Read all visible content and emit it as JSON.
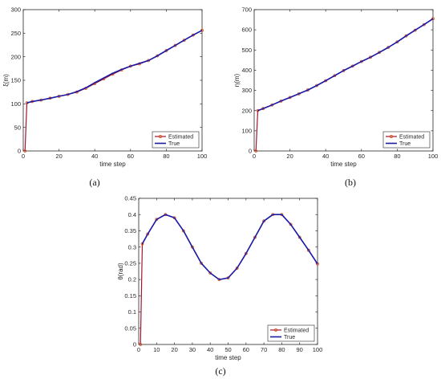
{
  "colors": {
    "estimated": "#a2142f",
    "estimated_marker": "#d95319",
    "true": "#1a1aa6",
    "axis": "#262626"
  },
  "chart_data": [
    {
      "type": "line",
      "panel": "(a)",
      "xlabel": "time step",
      "ylabel": "ξ(m)",
      "xlim": [
        0,
        100
      ],
      "ylim": [
        0,
        300
      ],
      "xticks": [
        0,
        20,
        40,
        60,
        80,
        100
      ],
      "yticks": [
        0,
        50,
        100,
        150,
        200,
        250,
        300
      ],
      "grid": false,
      "legend": "bottom-right",
      "series": [
        {
          "name": "Estimated",
          "key": "estimated",
          "marker": true,
          "x": [
            1,
            2,
            5,
            10,
            15,
            20,
            25,
            30,
            35,
            40,
            45,
            50,
            55,
            60,
            65,
            70,
            75,
            80,
            85,
            90,
            95,
            100
          ],
          "y": [
            0,
            102,
            105,
            108,
            112,
            116,
            120,
            125,
            133,
            143,
            153,
            163,
            172,
            180,
            185,
            192,
            202,
            213,
            224,
            235,
            246,
            256
          ]
        },
        {
          "name": "True",
          "key": "true",
          "marker": false,
          "x": [
            2,
            5,
            10,
            15,
            20,
            25,
            30,
            35,
            40,
            45,
            50,
            55,
            60,
            65,
            70,
            75,
            80,
            85,
            90,
            95,
            100
          ],
          "y": [
            102,
            105,
            108,
            112,
            116,
            120,
            126,
            134,
            145,
            155,
            165,
            173,
            180,
            186,
            192,
            202,
            213,
            224,
            235,
            246,
            256
          ]
        }
      ]
    },
    {
      "type": "line",
      "panel": "(b)",
      "xlabel": "time step",
      "ylabel": "η(m)",
      "xlim": [
        0,
        100
      ],
      "ylim": [
        0,
        700
      ],
      "xticks": [
        0,
        20,
        40,
        60,
        80,
        100
      ],
      "yticks": [
        0,
        100,
        200,
        300,
        400,
        500,
        600,
        700
      ],
      "grid": false,
      "legend": "bottom-right",
      "series": [
        {
          "name": "Estimated",
          "key": "estimated",
          "marker": true,
          "x": [
            1,
            2,
            5,
            10,
            15,
            20,
            25,
            30,
            35,
            40,
            45,
            50,
            55,
            60,
            65,
            70,
            75,
            80,
            85,
            90,
            95,
            100
          ],
          "y": [
            0,
            200,
            210,
            228,
            247,
            265,
            283,
            302,
            324,
            348,
            373,
            398,
            420,
            443,
            464,
            488,
            513,
            540,
            570,
            598,
            626,
            655
          ]
        },
        {
          "name": "True",
          "key": "true",
          "marker": false,
          "x": [
            2,
            5,
            10,
            15,
            20,
            25,
            30,
            35,
            40,
            45,
            50,
            55,
            60,
            65,
            70,
            75,
            80,
            85,
            90,
            95,
            100
          ],
          "y": [
            200,
            210,
            228,
            247,
            265,
            283,
            302,
            324,
            348,
            373,
            398,
            420,
            443,
            464,
            488,
            513,
            540,
            570,
            598,
            626,
            655
          ]
        }
      ]
    },
    {
      "type": "line",
      "panel": "(c)",
      "xlabel": "time step",
      "ylabel": "θ(rad)",
      "xlim": [
        0,
        100
      ],
      "ylim": [
        0,
        0.45
      ],
      "xticks": [
        0,
        10,
        20,
        30,
        40,
        50,
        60,
        70,
        80,
        90,
        100
      ],
      "yticks": [
        0,
        0.05,
        0.1,
        0.15,
        0.2,
        0.25,
        0.3,
        0.35,
        0.4,
        0.45
      ],
      "grid": false,
      "legend": "bottom-right",
      "series": [
        {
          "name": "Estimated",
          "key": "estimated",
          "marker": true,
          "x": [
            1,
            2,
            5,
            10,
            15,
            20,
            25,
            30,
            35,
            40,
            45,
            50,
            55,
            60,
            65,
            70,
            75,
            80,
            85,
            90,
            95,
            100
          ],
          "y": [
            0,
            0.31,
            0.34,
            0.385,
            0.4,
            0.39,
            0.35,
            0.3,
            0.25,
            0.22,
            0.2,
            0.205,
            0.235,
            0.28,
            0.33,
            0.38,
            0.4,
            0.4,
            0.37,
            0.33,
            0.29,
            0.248
          ]
        },
        {
          "name": "True",
          "key": "true",
          "marker": false,
          "x": [
            2,
            5,
            10,
            15,
            20,
            25,
            30,
            35,
            40,
            45,
            50,
            55,
            60,
            65,
            70,
            75,
            80,
            85,
            90,
            95,
            100
          ],
          "y": [
            0.31,
            0.34,
            0.385,
            0.4,
            0.39,
            0.35,
            0.3,
            0.25,
            0.22,
            0.2,
            0.205,
            0.235,
            0.28,
            0.33,
            0.38,
            0.4,
            0.4,
            0.37,
            0.33,
            0.29,
            0.248
          ]
        }
      ]
    }
  ]
}
